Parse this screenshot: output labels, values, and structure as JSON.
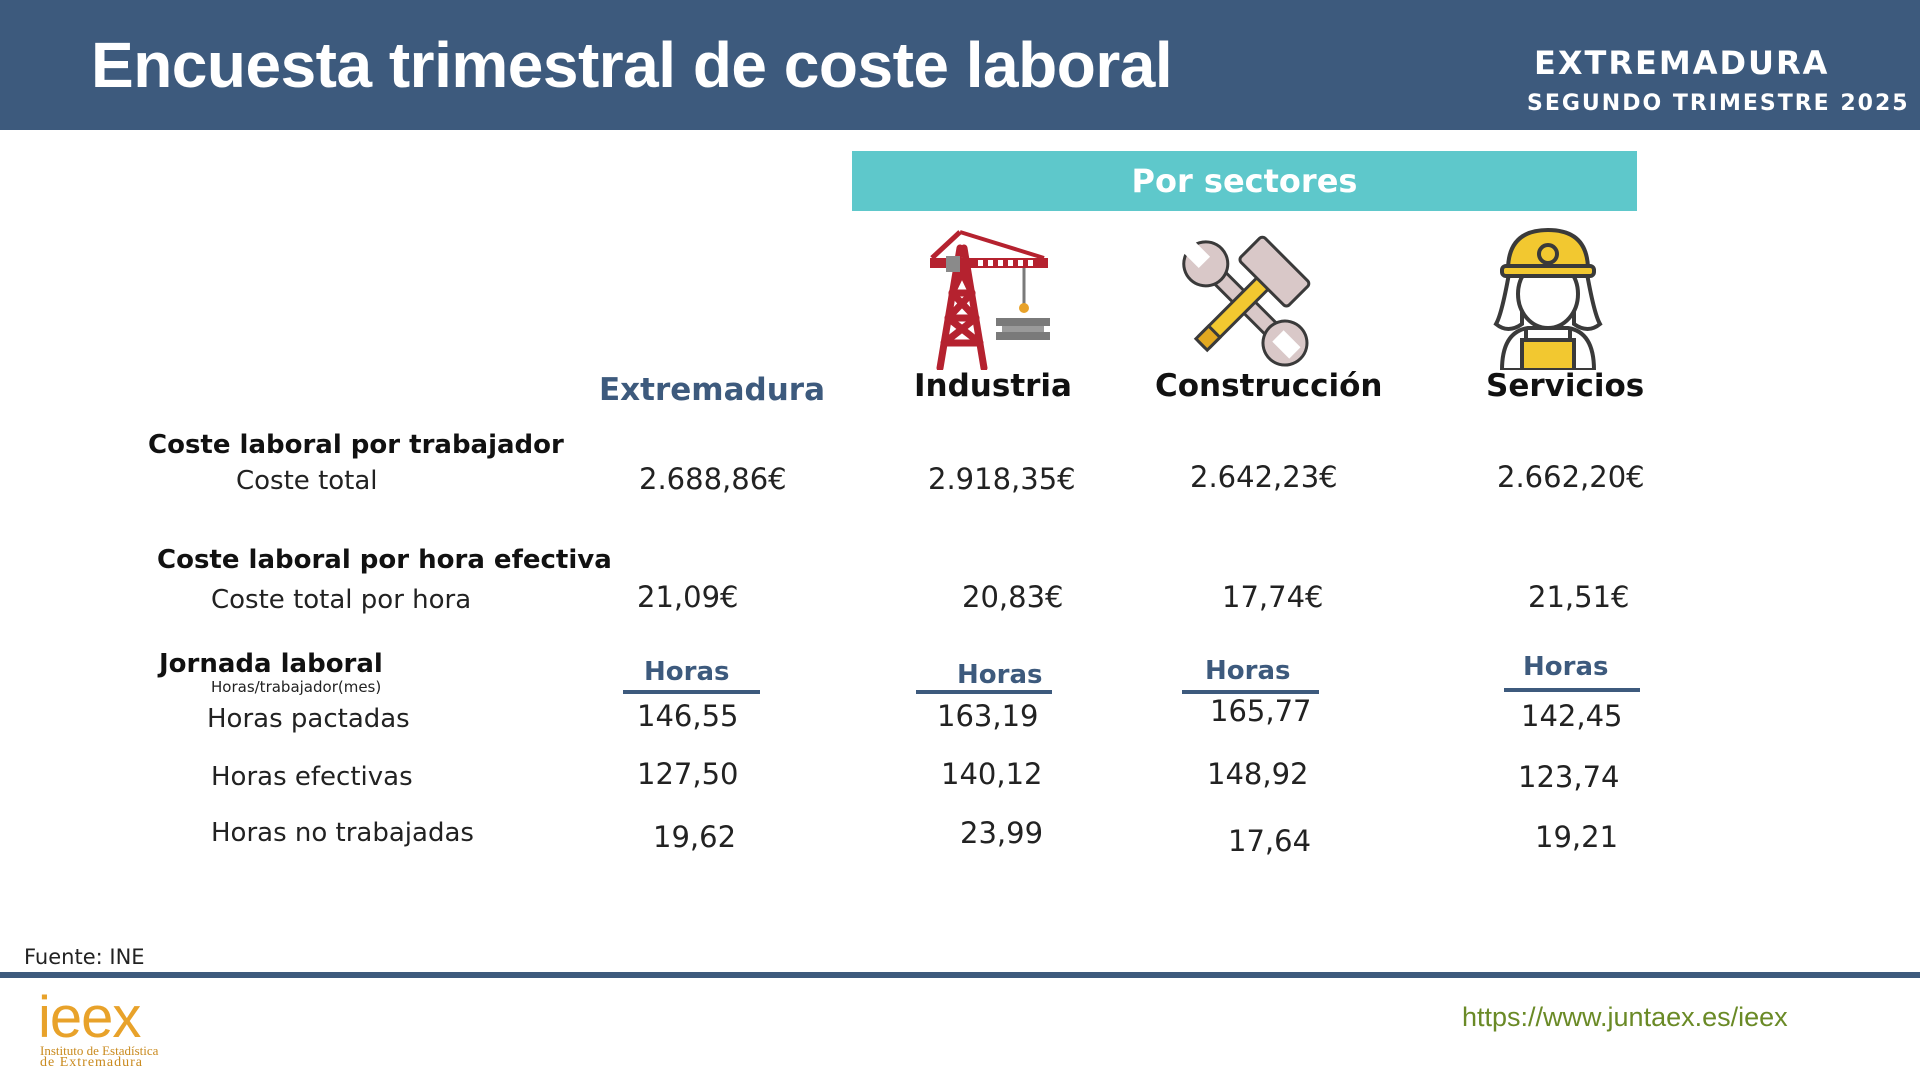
{
  "header": {
    "title": "Encuesta trimestral de coste laboral",
    "region": "EXTREMADURA",
    "period": "SEGUNDO TRIMESTRE 2025"
  },
  "sectors_banner": "Por sectores",
  "columns": {
    "region": "Extremadura",
    "industria": "Industria",
    "construccion": "Construcción",
    "servicios": "Servicios"
  },
  "icons": {
    "industria": "crane-icon",
    "construccion": "hammer-wrench-icon",
    "servicios": "worker-helmet-icon"
  },
  "sections": {
    "coste_trabajador": {
      "title": "Coste laboral por trabajador",
      "row_label": "Coste total",
      "values": {
        "region": "2.688,86€",
        "industria": "2.918,35€",
        "construccion": "2.642,23€",
        "servicios": "2.662,20€"
      }
    },
    "coste_hora": {
      "title": "Coste laboral por hora efectiva",
      "row_label": "Coste total por hora",
      "values": {
        "region": "21,09€",
        "industria": "20,83€",
        "construccion": "17,74€",
        "servicios": "21,51€"
      }
    },
    "jornada": {
      "title": "Jornada laboral",
      "unit_note": "Horas/trabajador(mes)",
      "column_unit": "Horas",
      "rows": {
        "pactadas": {
          "label": "Horas pactadas",
          "values": {
            "region": "146,55",
            "industria": "163,19",
            "construccion": "165,77",
            "servicios": "142,45"
          }
        },
        "efectivas": {
          "label": "Horas efectivas",
          "values": {
            "region": "127,50",
            "industria": "140,12",
            "construccion": "148,92",
            "servicios": "123,74"
          }
        },
        "no_trabajadas": {
          "label": "Horas no trabajadas",
          "values": {
            "region": "19,62",
            "industria": "23,99",
            "construccion": "17,64",
            "servicios": "19,21"
          }
        }
      }
    }
  },
  "footer": {
    "source": "Fuente: INE",
    "logo_text": "ieex",
    "logo_line1": "Instituto de Estadística",
    "logo_line2": "de Extremadura",
    "url": "https://www.juntaex.es/ieex"
  },
  "colors": {
    "header_bg": "#3d5a7d",
    "banner_bg": "#5ec8cb",
    "accent_text": "#3d5a7d",
    "logo_orange": "#e8a22a",
    "logo_green": "#7a9a2a",
    "url_green": "#6a8a26"
  }
}
